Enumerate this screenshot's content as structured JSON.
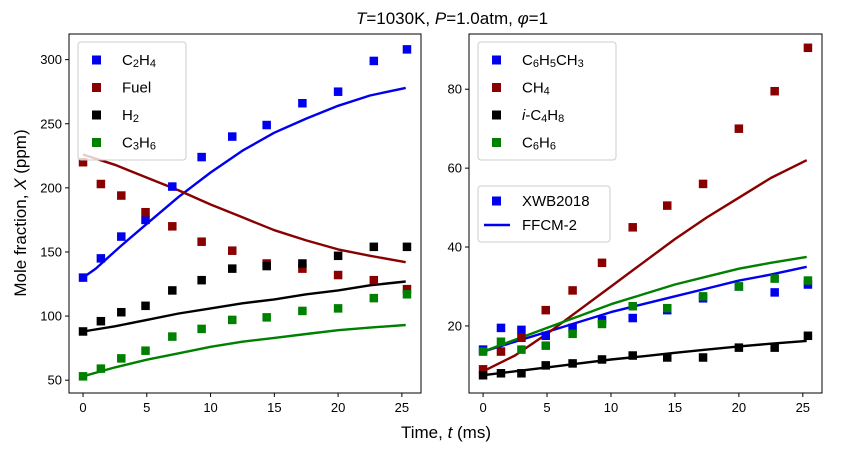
{
  "chart_data": {
    "type": "scatter",
    "title_parts": [
      "T",
      "=1030K, ",
      "P",
      "=1.0atm, ",
      "φ",
      "=1"
    ],
    "xlabel_parts": [
      "Time, ",
      "t",
      " (ms)"
    ],
    "ylabel_parts": [
      "Mole fraction, ",
      "X",
      " (ppm)"
    ],
    "colors": {
      "blue": "#0000ee",
      "darkred": "#880000",
      "black": "#000000",
      "green": "#008000"
    },
    "panels": [
      {
        "id": "left",
        "xlim": [
          -1.1,
          26.5
        ],
        "ylim": [
          40,
          320
        ],
        "xticks": [
          0,
          5,
          10,
          15,
          20,
          25
        ],
        "yticks": [
          50,
          100,
          150,
          200,
          250,
          300
        ],
        "series": [
          {
            "name": "C2H4",
            "label": [
              "C",
              "2",
              "H",
              "4"
            ],
            "color": "#0000ee",
            "x": [
              0,
              1.4,
              3.0,
              4.9,
              7.0,
              9.3,
              11.7,
              14.4,
              17.2,
              20.0,
              22.8,
              25.4
            ],
            "y": [
              130,
              145,
              162,
              175,
              201,
              224,
              240,
              249,
              266,
              275,
              299,
              308
            ],
            "model": {
              "x": [
                0,
                1,
                2,
                3,
                5,
                7.5,
                10,
                12.5,
                15,
                17.5,
                20,
                22.5,
                25.3
              ],
              "y": [
                130,
                137,
                146,
                155,
                172,
                193,
                212,
                229,
                243,
                254,
                264,
                272,
                278
              ]
            }
          },
          {
            "name": "Fuel",
            "label": [
              "Fuel"
            ],
            "color": "#880000",
            "x": [
              0,
              1.4,
              3.0,
              4.9,
              7.0,
              9.3,
              11.7,
              14.4,
              17.2,
              20.0,
              22.8,
              25.4
            ],
            "y": [
              220,
              203,
              194,
              181,
              170,
              158,
              151,
              141,
              137,
              132,
              128,
              121
            ],
            "model": {
              "x": [
                0,
                2.5,
                5,
                7.5,
                10,
                12.5,
                15,
                17.5,
                20,
                22.5,
                25.3
              ],
              "y": [
                226,
                218,
                208,
                198,
                187,
                177,
                167,
                159,
                152,
                147,
                142
              ]
            }
          },
          {
            "name": "H2",
            "label": [
              "H",
              "2"
            ],
            "color": "#000000",
            "x": [
              0,
              1.4,
              3.0,
              4.9,
              7.0,
              9.3,
              11.7,
              14.4,
              17.2,
              20.0,
              22.8,
              25.4
            ],
            "y": [
              88,
              96,
              103,
              108,
              120,
              128,
              137,
              139,
              141,
              147,
              154,
              154
            ],
            "model": {
              "x": [
                0,
                2.5,
                5,
                7.5,
                10,
                12.5,
                15,
                17.5,
                20,
                22.5,
                25.3
              ],
              "y": [
                88,
                92,
                97,
                102,
                106,
                110,
                113,
                117,
                120,
                124,
                127
              ]
            }
          },
          {
            "name": "C3H6",
            "label": [
              "C",
              "3",
              "H",
              "6"
            ],
            "color": "#008000",
            "x": [
              0,
              1.4,
              3.0,
              4.9,
              7.0,
              9.3,
              11.7,
              14.4,
              17.2,
              20.0,
              22.8,
              25.4
            ],
            "y": [
              53,
              59,
              67,
              73,
              84,
              90,
              97,
              99,
              104,
              106,
              114,
              117
            ],
            "model": {
              "x": [
                0,
                2.5,
                5,
                7.5,
                10,
                12.5,
                15,
                17.5,
                20,
                22.5,
                25.3
              ],
              "y": [
                53,
                60,
                66,
                71,
                76,
                80,
                83,
                86,
                89,
                91,
                93
              ]
            }
          }
        ]
      },
      {
        "id": "right",
        "xlim": [
          -1.1,
          26.5
        ],
        "ylim": [
          3,
          94
        ],
        "xticks": [
          0,
          5,
          10,
          15,
          20,
          25
        ],
        "yticks": [
          20,
          40,
          60,
          80
        ],
        "series": [
          {
            "name": "C6H5CH3",
            "label": [
              "C",
              "6",
              "H",
              "5",
              "CH",
              "3"
            ],
            "color": "#0000ee",
            "x": [
              0,
              1.4,
              3.0,
              4.9,
              7.0,
              9.3,
              11.7,
              14.4,
              17.2,
              20.0,
              22.8,
              25.4
            ],
            "y": [
              14,
              19.5,
              19,
              17.5,
              19.5,
              21.5,
              22,
              24,
              27,
              30,
              28.5,
              30.5
            ],
            "model": {
              "x": [
                0,
                2.5,
                5,
                7.5,
                10,
                12.5,
                15,
                17.5,
                20,
                22.5,
                25.3
              ],
              "y": [
                13.5,
                16,
                18.5,
                21,
                23.5,
                25.5,
                27.5,
                29.5,
                31.5,
                33,
                35
              ]
            }
          },
          {
            "name": "CH4",
            "label": [
              "CH",
              "4"
            ],
            "color": "#880000",
            "x": [
              0,
              1.4,
              3.0,
              4.9,
              7.0,
              9.3,
              11.7,
              14.4,
              17.2,
              20.0,
              22.8,
              25.4
            ],
            "y": [
              9,
              13.5,
              17,
              24,
              29,
              36,
              45,
              50.5,
              56,
              70,
              79.5,
              90.5
            ],
            "model": {
              "x": [
                0,
                2.5,
                5,
                7.5,
                10,
                12.5,
                15,
                17.5,
                20,
                22.5,
                25.3
              ],
              "y": [
                8.5,
                12.5,
                18,
                24,
                30,
                36,
                42,
                47.5,
                52.5,
                57.5,
                62
              ]
            }
          },
          {
            "name": "i-C4H8",
            "label": [
              "i",
              "-C",
              "4",
              "H",
              "8"
            ],
            "color": "#000000",
            "x": [
              0,
              1.4,
              3.0,
              4.9,
              7.0,
              9.3,
              11.7,
              14.4,
              17.2,
              20.0,
              22.8,
              25.4
            ],
            "y": [
              7.5,
              8,
              8,
              10,
              10.5,
              11.5,
              12.5,
              12,
              12,
              14.5,
              14.5,
              17.5
            ],
            "model": {
              "x": [
                0,
                2.5,
                5,
                7.5,
                10,
                12.5,
                15,
                17.5,
                20,
                22.5,
                25.3
              ],
              "y": [
                7.5,
                8.5,
                9.5,
                10.5,
                11.5,
                12.3,
                13.2,
                14,
                14.8,
                15.5,
                16.2
              ]
            }
          },
          {
            "name": "C6H6",
            "label": [
              "C",
              "6",
              "H",
              "6"
            ],
            "color": "#008000",
            "x": [
              0,
              1.4,
              3.0,
              4.9,
              7.0,
              9.3,
              11.7,
              14.4,
              17.2,
              20.0,
              22.8,
              25.4
            ],
            "y": [
              13.5,
              16,
              14,
              15,
              18,
              20.5,
              25,
              24.5,
              27.5,
              30,
              32,
              31.5
            ],
            "model": {
              "x": [
                0,
                2.5,
                5,
                7.5,
                10,
                12.5,
                15,
                17.5,
                20,
                22.5,
                25.3
              ],
              "y": [
                13.5,
                16.5,
                19.5,
                22.5,
                25.5,
                28,
                30.5,
                32.5,
                34.5,
                36,
                37.5
              ]
            }
          }
        ]
      }
    ],
    "style_legend": [
      {
        "label": "XWB2018",
        "kind": "marker"
      },
      {
        "label": "FFCM-2",
        "kind": "line"
      }
    ]
  }
}
